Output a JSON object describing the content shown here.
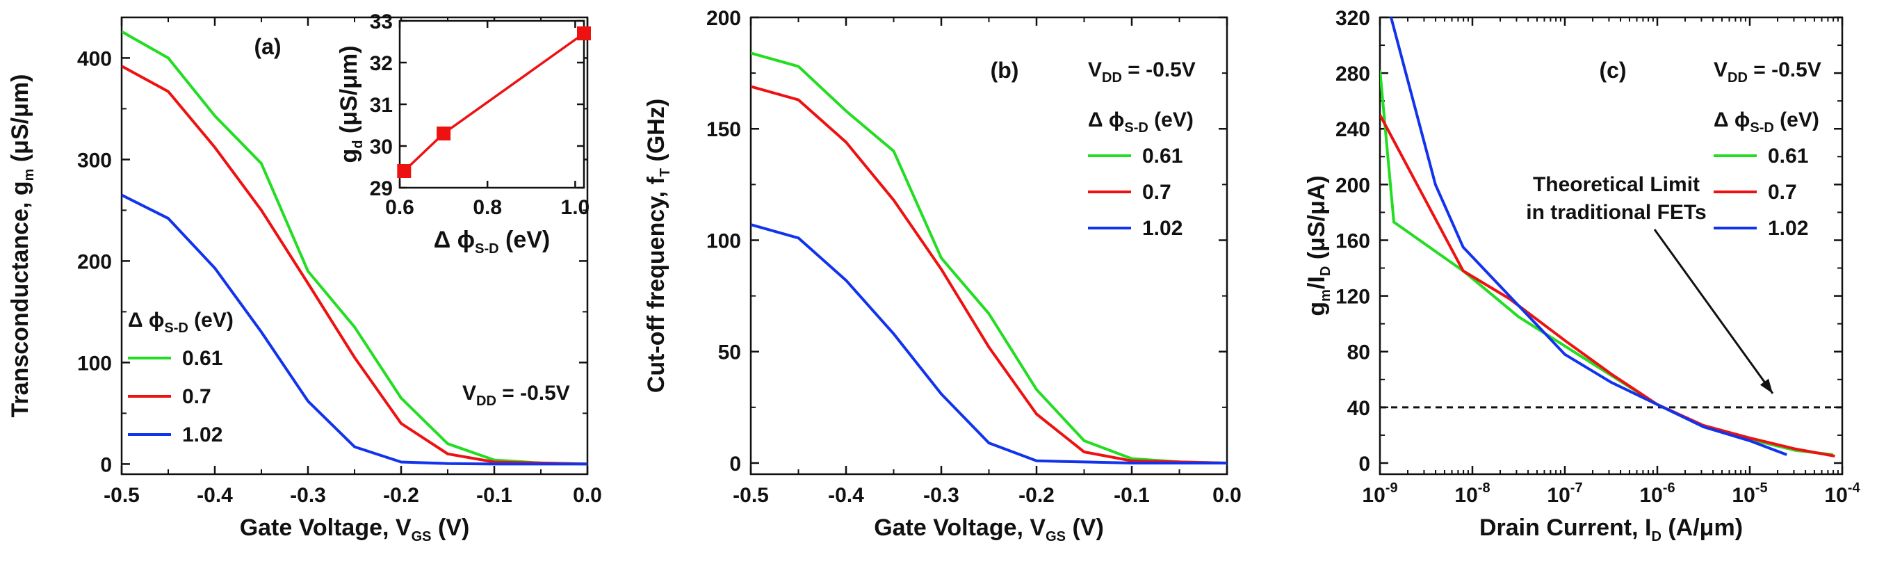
{
  "chart_data": [
    {
      "id": "a",
      "type": "line",
      "panel_label": "(a)",
      "xlabel": {
        "main": "Gate Voltage, V",
        "sub": "GS",
        "tail": " (V)"
      },
      "ylabel": {
        "main": "Transconductance, g",
        "sub": "m",
        "tail": " (μS/μm)"
      },
      "xlim": [
        -0.5,
        0.0
      ],
      "ylim": [
        -10,
        440
      ],
      "xticks": [
        -0.5,
        -0.4,
        -0.3,
        -0.2,
        -0.1,
        0.0
      ],
      "xtick_labels": [
        "-0.5",
        "-0.4",
        "-0.3",
        "-0.2",
        "-0.1",
        "0.0"
      ],
      "yticks": [
        0,
        100,
        200,
        300,
        400
      ],
      "ytick_labels": [
        "0",
        "100",
        "200",
        "300",
        "400"
      ],
      "annotation": {
        "main": "V",
        "sub": "DD",
        "tail": " = -0.5V"
      },
      "legend_title": {
        "main": "Δ ϕ",
        "sub": "S-D",
        "tail": " (eV)"
      },
      "series": [
        {
          "name": "0.61",
          "color": "#22dd22",
          "x": [
            -0.5,
            -0.45,
            -0.4,
            -0.35,
            -0.3,
            -0.25,
            -0.2,
            -0.15,
            -0.1,
            -0.05,
            0.0
          ],
          "y": [
            426,
            400,
            343,
            296,
            190,
            135,
            65,
            20,
            4,
            1,
            0
          ]
        },
        {
          "name": "0.7",
          "color": "#ee1111",
          "x": [
            -0.5,
            -0.45,
            -0.4,
            -0.35,
            -0.3,
            -0.25,
            -0.2,
            -0.15,
            -0.1,
            -0.05,
            0.0
          ],
          "y": [
            392,
            367,
            312,
            250,
            178,
            105,
            40,
            10,
            2,
            1,
            0
          ]
        },
        {
          "name": "1.02",
          "color": "#1133ee",
          "x": [
            -0.5,
            -0.45,
            -0.4,
            -0.35,
            -0.3,
            -0.25,
            -0.2,
            -0.15,
            -0.1,
            -0.05,
            0.0
          ],
          "y": [
            265,
            242,
            193,
            130,
            62,
            17,
            2,
            0.5,
            0,
            0,
            0
          ]
        }
      ],
      "inset": {
        "type": "line",
        "xlabel": {
          "main": "Δ ϕ",
          "sub": "S-D",
          "tail": " (eV)"
        },
        "ylabel": {
          "main": "g",
          "sub": "d",
          "tail": " (μS/μm)"
        },
        "xlim": [
          0.6,
          1.02
        ],
        "ylim": [
          29,
          33
        ],
        "xticks": [
          0.6,
          0.8,
          1.0
        ],
        "xtick_labels": [
          "0.6",
          "0.8",
          "1.0"
        ],
        "yticks": [
          29,
          30,
          31,
          32,
          33
        ],
        "ytick_labels": [
          "29",
          "30",
          "31",
          "32",
          "33"
        ],
        "color": "#ee1111",
        "x": [
          0.61,
          0.7,
          1.02
        ],
        "y": [
          29.4,
          30.3,
          32.7
        ]
      }
    },
    {
      "id": "b",
      "type": "line",
      "panel_label": "(b)",
      "xlabel": {
        "main": "Gate Voltage, V",
        "sub": "GS",
        "tail": " (V)"
      },
      "ylabel": {
        "main": "Cut-off frequency, f",
        "sub": "T",
        "tail": " (GHz)"
      },
      "xlim": [
        -0.5,
        0.0
      ],
      "ylim": [
        -5,
        200
      ],
      "xticks": [
        -0.5,
        -0.4,
        -0.3,
        -0.2,
        -0.1,
        0.0
      ],
      "xtick_labels": [
        "-0.5",
        "-0.4",
        "-0.3",
        "-0.2",
        "-0.1",
        "0.0"
      ],
      "yticks": [
        0,
        50,
        100,
        150,
        200
      ],
      "ytick_labels": [
        "0",
        "50",
        "100",
        "150",
        "200"
      ],
      "annotation": {
        "main": "V",
        "sub": "DD",
        "tail": " = -0.5V"
      },
      "legend_title": {
        "main": "Δ ϕ",
        "sub": "S-D",
        "tail": " (eV)"
      },
      "series": [
        {
          "name": "0.61",
          "color": "#22dd22",
          "x": [
            -0.5,
            -0.45,
            -0.4,
            -0.35,
            -0.3,
            -0.25,
            -0.2,
            -0.15,
            -0.1,
            -0.05,
            0.0
          ],
          "y": [
            184,
            178,
            158,
            140,
            92,
            67,
            33,
            10,
            2,
            0.5,
            0
          ]
        },
        {
          "name": "0.7",
          "color": "#ee1111",
          "x": [
            -0.5,
            -0.45,
            -0.4,
            -0.35,
            -0.3,
            -0.25,
            -0.2,
            -0.15,
            -0.1,
            -0.05,
            0.0
          ],
          "y": [
            169,
            163,
            144,
            118,
            87,
            52,
            22,
            5,
            1,
            0.5,
            0
          ]
        },
        {
          "name": "1.02",
          "color": "#1133ee",
          "x": [
            -0.5,
            -0.45,
            -0.4,
            -0.35,
            -0.3,
            -0.25,
            -0.2,
            -0.15,
            -0.1,
            -0.05,
            0.0
          ],
          "y": [
            107,
            101,
            82,
            58,
            31,
            9,
            1,
            0.5,
            0,
            0,
            0
          ]
        }
      ]
    },
    {
      "id": "c",
      "type": "line",
      "panel_label": "(c)",
      "xscale": "log",
      "xlabel": {
        "main": "Drain Current, I",
        "sub": "D",
        "tail": " (A/μm)"
      },
      "ylabel": {
        "main": "g",
        "sub": "m",
        "tail": "/I",
        "sub2": "D",
        "tail2": " (μS/μA)"
      },
      "xlim_exp": [
        -9,
        -4
      ],
      "ylim": [
        -8,
        320
      ],
      "xtick_exponents": [
        -9,
        -8,
        -7,
        -6,
        -5,
        -4
      ],
      "xtick_base": "10",
      "xtick_labels": [
        "-9",
        "-8",
        "-7",
        "-6",
        "-5",
        "-4"
      ],
      "yticks": [
        0,
        40,
        80,
        120,
        160,
        200,
        240,
        280,
        320
      ],
      "ytick_labels": [
        "0",
        "40",
        "80",
        "120",
        "160",
        "200",
        "240",
        "280",
        "320"
      ],
      "annotation": {
        "main": "V",
        "sub": "DD",
        "tail": " = -0.5V"
      },
      "legend_title": {
        "main": "Δ ϕ",
        "sub": "S-D",
        "tail": " (eV)"
      },
      "theoretical_limit": {
        "y": 40,
        "label_line1": "Theoretical Limit",
        "label_line2": "in traditional FETs"
      },
      "series": [
        {
          "name": "0.61",
          "color": "#22dd22",
          "log10x": [
            -9.0,
            -8.85,
            -8.1,
            -7.5,
            -7.0,
            -6.5,
            -6.0,
            -5.5,
            -5.0,
            -4.5,
            -4.1
          ],
          "y": [
            282,
            173,
            138,
            105,
            84,
            63,
            42,
            26,
            17,
            9,
            6
          ]
        },
        {
          "name": "0.7",
          "color": "#ee1111",
          "log10x": [
            -9.0,
            -8.1,
            -7.6,
            -7.0,
            -6.5,
            -6.0,
            -5.5,
            -5.0,
            -4.5,
            -4.08
          ],
          "y": [
            250,
            138,
            118,
            88,
            64,
            42,
            27,
            18,
            10,
            5
          ]
        },
        {
          "name": "1.02",
          "color": "#1133ee",
          "log10x": [
            -8.88,
            -8.4,
            -8.1,
            -7.6,
            -7.0,
            -6.5,
            -6.0,
            -5.5,
            -5.0,
            -4.6
          ],
          "y": [
            320,
            200,
            155,
            120,
            78,
            58,
            42,
            26,
            16,
            6
          ]
        }
      ]
    }
  ]
}
